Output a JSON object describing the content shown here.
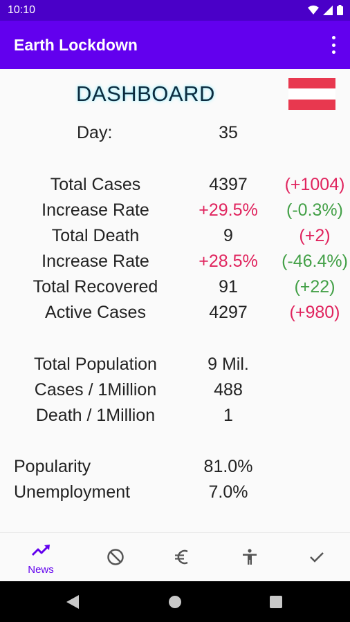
{
  "status_bar": {
    "time": "10:10"
  },
  "app_bar": {
    "title": "Earth Lockdown",
    "menu_icon": "more-vert-icon"
  },
  "dashboard": {
    "title": "DASHBOARD",
    "flag_colors": [
      "#e8384f",
      "#ffffff",
      "#e8384f"
    ],
    "day_label": "Day:",
    "day_value": "35",
    "stats": [
      {
        "label": "Total Cases",
        "value": "4397",
        "change": "(+1004)"
      },
      {
        "label": "Increase Rate",
        "value": "+29.5%",
        "change": "(-0.3%)"
      },
      {
        "label": "Total Death",
        "value": "9",
        "change": "(+2)"
      },
      {
        "label": "Increase Rate",
        "value": "+28.5%",
        "change": "(-46.4%)"
      },
      {
        "label": "Total Recovered",
        "value": "91",
        "change": "(+22)"
      },
      {
        "label": "Active Cases",
        "value": "4297",
        "change": "(+980)"
      }
    ],
    "population": [
      {
        "label": "Total Population",
        "value": "9 Mil."
      },
      {
        "label": "Cases / 1Million",
        "value": "488"
      },
      {
        "label": "Death / 1Million",
        "value": "1"
      }
    ],
    "indicators": [
      {
        "label": "Popularity",
        "value": "81.0%"
      },
      {
        "label": "Unemployment",
        "value": "7.0%"
      }
    ]
  },
  "colors": {
    "accent": "#6200ee",
    "status_bar": "#4a00c8",
    "negative": "#e0245e",
    "positive": "#43a047"
  },
  "bottom_nav": [
    {
      "label": "News",
      "icon": "trending-up-icon",
      "active": true
    },
    {
      "icon": "block-icon"
    },
    {
      "icon": "euro-icon"
    },
    {
      "icon": "accessibility-icon"
    },
    {
      "icon": "check-icon"
    }
  ],
  "system_nav": [
    "back-icon",
    "home-icon",
    "recents-icon"
  ]
}
